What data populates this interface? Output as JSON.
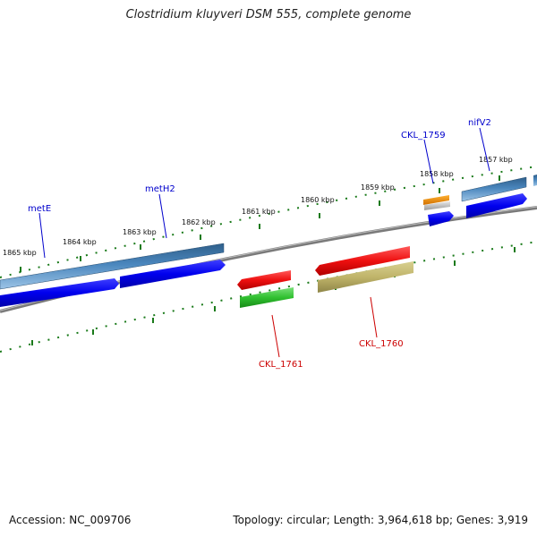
{
  "title": "Clostridium kluyveri DSM 555, complete genome",
  "footer": {
    "accession": "Accession: NC_009706",
    "summary": "Topology: circular; Length: 3,964,618 bp; Genes: 3,919"
  },
  "colors": {
    "label_forward": "#0000cc",
    "label_reverse": "#cc0000",
    "tick_color": "#1a7a1a",
    "backbone": "#888888"
  },
  "scale_labels": [
    "1865 kbp",
    "1864 kbp",
    "1863 kbp",
    "1862 kbp",
    "1861 kbp",
    "1860 kbp",
    "1859 kbp",
    "1858 kbp",
    "1857 kbp"
  ],
  "genes": [
    {
      "name": "metE",
      "strand": "forward",
      "color": "#4a86bd"
    },
    {
      "name": "metH2",
      "strand": "forward",
      "color": "#4a86bd"
    },
    {
      "name": "CKL_1759",
      "strand": "forward",
      "color": "#e8a020"
    },
    {
      "name": "nifV2",
      "strand": "forward",
      "color": "#4a86bd"
    },
    {
      "name": "CKL_1761",
      "strand": "reverse",
      "color": "#e02020"
    },
    {
      "name": "CKL_1760",
      "strand": "reverse",
      "color": "#e02020"
    }
  ]
}
